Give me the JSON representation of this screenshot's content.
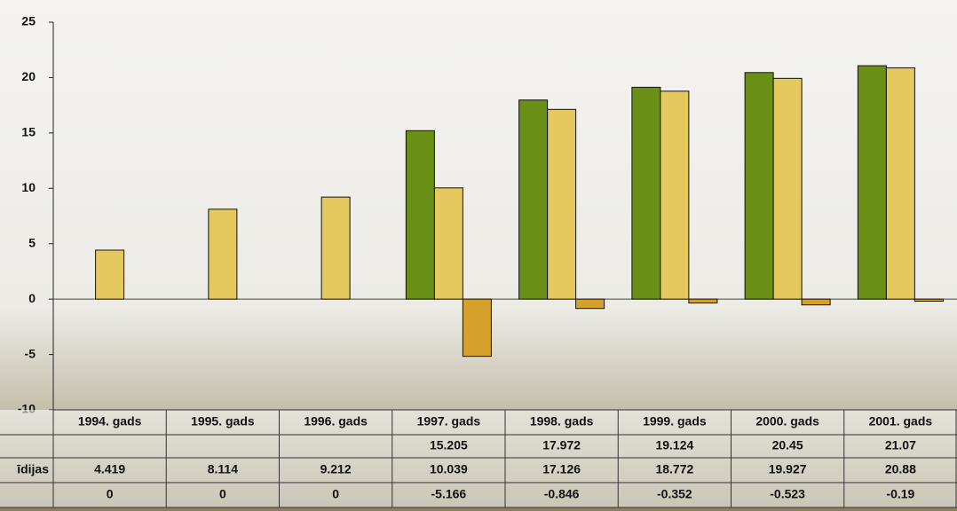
{
  "chart_data": {
    "type": "bar",
    "categories": [
      "1994. gads",
      "1995. gads",
      "1996. gads",
      "1997. gads",
      "1998. gads",
      "1999. gads",
      "2000. gads",
      "2001. gads"
    ],
    "series": [
      {
        "color": "#6a8f17",
        "values": [
          null,
          null,
          null,
          15.205,
          17.972,
          19.124,
          20.45,
          21.07
        ]
      },
      {
        "name": "īdijas",
        "color": "#e5c95e",
        "values": [
          4.419,
          8.114,
          9.212,
          10.039,
          17.126,
          18.772,
          19.927,
          20.88
        ]
      },
      {
        "color": "#d6a12b",
        "values": [
          0,
          0,
          0,
          -5.166,
          -0.846,
          -0.352,
          -0.523,
          -0.19
        ]
      }
    ],
    "ylim": [
      -10,
      25
    ],
    "yticks": [
      -10,
      -5,
      0,
      5,
      10,
      15,
      20,
      25
    ],
    "grid": false
  }
}
